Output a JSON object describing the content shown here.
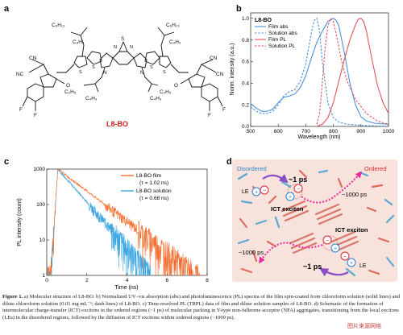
{
  "panels": {
    "a": {
      "label": "a",
      "molecule_name": "L8-BO",
      "chain_c6": "C₆H₁₃",
      "chain_c4": "C₄H₉",
      "chain_c2": "C₂H₅",
      "atom_N": "N",
      "atom_S": "S",
      "atom_O": "O",
      "atom_F": "F",
      "group_CN": "CN",
      "group_NC": "NC"
    },
    "b": {
      "label": "b"
    },
    "c": {
      "label": "c"
    },
    "d": {
      "label": "d",
      "disordered": "Disordered",
      "ordered": "Ordered",
      "ps1_top": "~1 ps",
      "ps1000_top": "~1000 ps",
      "ict_left": "ICT exciton",
      "ict_right": "ICT exciton",
      "le_top": "LE",
      "le_bottom": "LE",
      "ps1000_bottom": "~1000 ps",
      "ps1_bottom": "~1 ps",
      "plus": "+",
      "minus": "−"
    }
  },
  "charts": [
    {
      "id": "abs-pl",
      "type": "line",
      "series_title": "L8-BO",
      "xlabel": "Wavelength (nm)",
      "ylabel": "Norm. intensity (a.u.)",
      "xlim": [
        500,
        1000
      ],
      "ylim": [
        0,
        1.05
      ],
      "xticks": [
        500,
        600,
        700,
        800,
        900,
        1000
      ],
      "yticks": [
        0.0,
        0.2,
        0.4,
        0.6,
        0.8,
        1.0
      ],
      "legend_position": "top-left",
      "series": [
        {
          "name": "Film abs",
          "color": "#4a90d9",
          "dash": "solid",
          "x": [
            500,
            520,
            540,
            560,
            580,
            600,
            620,
            640,
            660,
            680,
            700,
            720,
            740,
            760,
            780,
            800,
            810,
            820,
            840,
            860,
            880,
            900,
            920,
            950,
            1000
          ],
          "y": [
            0.21,
            0.17,
            0.14,
            0.14,
            0.16,
            0.22,
            0.27,
            0.28,
            0.3,
            0.36,
            0.47,
            0.63,
            0.78,
            0.88,
            0.97,
            1.0,
            0.98,
            0.93,
            0.68,
            0.4,
            0.2,
            0.09,
            0.05,
            0.03,
            0.02
          ]
        },
        {
          "name": "Solution abs",
          "color": "#4a90d9",
          "dash": "dashed",
          "x": [
            500,
            520,
            540,
            560,
            580,
            600,
            620,
            640,
            660,
            680,
            700,
            710,
            720,
            730,
            740,
            750,
            760,
            780,
            800,
            820,
            850,
            900,
            1000
          ],
          "y": [
            0.18,
            0.14,
            0.12,
            0.12,
            0.14,
            0.2,
            0.28,
            0.32,
            0.34,
            0.42,
            0.58,
            0.72,
            0.86,
            0.98,
            1.0,
            0.88,
            0.6,
            0.22,
            0.08,
            0.04,
            0.02,
            0.01,
            0.0
          ]
        },
        {
          "name": "Film PL",
          "color": "#e0535a",
          "dash": "solid",
          "x": [
            740,
            760,
            780,
            800,
            820,
            840,
            860,
            880,
            890,
            900,
            910,
            920,
            940,
            960,
            980,
            1000
          ],
          "y": [
            0.0,
            0.02,
            0.08,
            0.22,
            0.42,
            0.62,
            0.8,
            0.94,
            0.99,
            1.0,
            0.97,
            0.88,
            0.62,
            0.38,
            0.22,
            0.12
          ]
        },
        {
          "name": "Solution PL",
          "color": "#e0535a",
          "dash": "dashed",
          "x": [
            740,
            750,
            760,
            770,
            780,
            790,
            800,
            810,
            830,
            850,
            880,
            920,
            960,
            1000
          ],
          "y": [
            0.02,
            0.12,
            0.4,
            0.72,
            0.93,
            1.0,
            0.97,
            0.86,
            0.6,
            0.42,
            0.25,
            0.12,
            0.05,
            0.02
          ]
        }
      ]
    },
    {
      "id": "trpl",
      "type": "line",
      "xlabel": "Time (ns)",
      "ylabel": "PL intensity (count)",
      "xlim": [
        0,
        8
      ],
      "ylim": [
        1,
        1000
      ],
      "yscale": "log",
      "xticks": [
        0,
        2,
        4,
        6,
        8
      ],
      "yticks": [
        1,
        10,
        100,
        1000
      ],
      "ytick_labels": [
        "1",
        "10",
        "100",
        "1000"
      ],
      "legend_position": "top-right",
      "series": [
        {
          "name": "L8-BO film",
          "annotation": "(τ = 1.02 ns)",
          "color": "#f26b2a",
          "tau": 1.02,
          "end": 8.0,
          "noise_floor": 3
        },
        {
          "name": "L8-BO solution",
          "annotation": "(τ = 0.68 ns)",
          "color": "#3ea7e0",
          "tau": 0.68,
          "end": 5.2,
          "noise_floor": 1.5
        }
      ]
    }
  ],
  "caption": {
    "figure_label": "Figure 1.",
    "text": "a) Molecular structure of L8-BO. b) Normalized UV–vis absorption (abs) and photoluminescence (PL) spectra of the film spin-coated from chloroform solution (solid lines) and dilute chloroform solution (0.01 mg mL⁻¹; dash lines) of L8-BO. c) Time-resolved PL (TRPL) data of film and dilute solution samples of L8-BO. d) Schematic of the formation of intermolecular charge-transfer (ICT) excitons in the ordered regions (~1 ps) of molecular packing in Y-type non-fullerene acceptor (NFA) aggregates, transitioning from the local excitons (LEs) in the disordered regions, followed by the diffusion of ICT excitons within ordered regions (~1000 ps)."
  },
  "watermark": "图片来源网络",
  "colors": {
    "film_abs": "#4a90d9",
    "pl": "#e0535a",
    "film_trpl": "#f26b2a",
    "solution_trpl": "#3ea7e0",
    "molecule_name": "#d11f1f",
    "schematic_bg": "#f7e2dc",
    "arrow_pink": "#e8299a",
    "arrow_purple": "#8a4fc8"
  }
}
